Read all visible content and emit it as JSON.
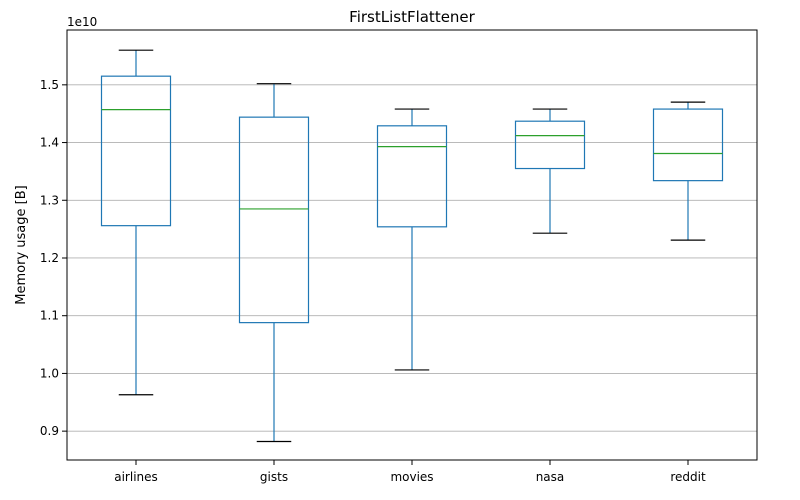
{
  "chart_data": {
    "type": "box",
    "title": "FirstListFlattener",
    "ylabel": "Memory usage [B]",
    "xlabel": "",
    "y_multiplier_label": "1e10",
    "y_scale": 10000000000,
    "ylim": [
      0.85,
      1.595
    ],
    "yticks": [
      0.9,
      1.0,
      1.1,
      1.2,
      1.3,
      1.4,
      1.5
    ],
    "ytick_labels": [
      "0.9",
      "1.0",
      "1.1",
      "1.2",
      "1.3",
      "1.4",
      "1.5"
    ],
    "grid": "y",
    "categories": [
      "airlines",
      "gists",
      "movies",
      "nasa",
      "reddit"
    ],
    "boxes": [
      {
        "category": "airlines",
        "whisker_low": 0.963,
        "q1": 1.256,
        "median": 1.457,
        "q3": 1.515,
        "whisker_high": 1.56
      },
      {
        "category": "gists",
        "whisker_low": 0.882,
        "q1": 1.088,
        "median": 1.285,
        "q3": 1.444,
        "whisker_high": 1.502
      },
      {
        "category": "movies",
        "whisker_low": 1.006,
        "q1": 1.254,
        "median": 1.393,
        "q3": 1.429,
        "whisker_high": 1.458
      },
      {
        "category": "nasa",
        "whisker_low": 1.243,
        "q1": 1.355,
        "median": 1.412,
        "q3": 1.437,
        "whisker_high": 1.458
      },
      {
        "category": "reddit",
        "whisker_low": 1.231,
        "q1": 1.334,
        "median": 1.381,
        "q3": 1.458,
        "whisker_high": 1.47
      }
    ],
    "colors": {
      "box": "#1f77b4",
      "median": "#2ca02c",
      "whisker_cap": "#000000",
      "grid": "#b0b0b0",
      "axes": "#000000"
    }
  }
}
